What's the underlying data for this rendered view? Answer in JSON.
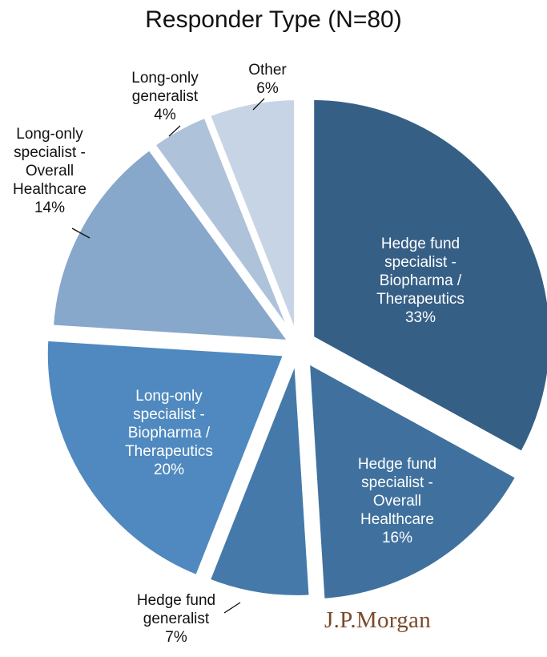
{
  "chart_data": {
    "type": "pie",
    "title": "Responder Type (N=80)",
    "slices": [
      {
        "lines": [
          "Hedge fund",
          "specialist -",
          "Biopharma /",
          "Therapeutics",
          "33%"
        ],
        "value": 33,
        "color": "#365f86"
      },
      {
        "lines": [
          "Hedge fund",
          "specialist -",
          "Overall",
          "Healthcare",
          "16%"
        ],
        "value": 16,
        "color": "#40719e"
      },
      {
        "lines": [
          "Hedge fund",
          "generalist",
          "7%"
        ],
        "value": 7,
        "color": "#4479aa"
      },
      {
        "lines": [
          "Long-only",
          "specialist -",
          "Biopharma /",
          "Therapeutics",
          "20%"
        ],
        "value": 20,
        "color": "#4f89bf"
      },
      {
        "lines": [
          "Long-only",
          "specialist -",
          "Overall",
          "Healthcare",
          "14%"
        ],
        "value": 14,
        "color": "#87a7cb"
      },
      {
        "lines": [
          "Long-only",
          "generalist",
          "4%"
        ],
        "value": 4,
        "color": "#aec2da"
      },
      {
        "lines": [
          "Other",
          "6%"
        ],
        "value": 6,
        "color": "#c7d4e5"
      }
    ]
  },
  "logo_text": "J.P.Morgan"
}
